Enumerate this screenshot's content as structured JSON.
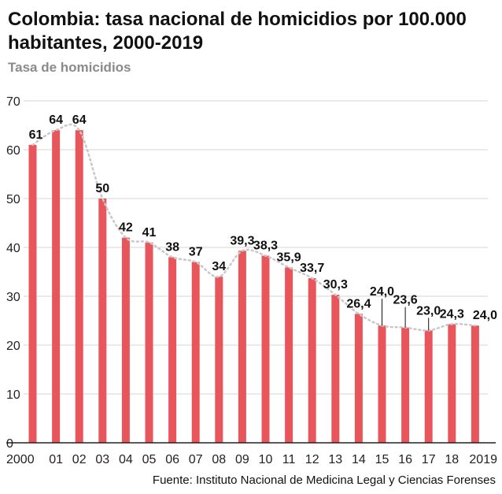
{
  "title": "Colombia: tasa nacional de homicidios por 100.000 habitantes, 2000-2019",
  "subtitle": "Tasa de homicidios",
  "source": "Fuente: Instituto Nacional de Medicina Legal y Ciencias Forenses",
  "colors": {
    "bar": "#e8565c",
    "trend": "#c8c8c8",
    "grid": "#d4d4d4",
    "axis": "#222222"
  },
  "chart_data": {
    "type": "bar",
    "title": "Colombia: tasa nacional de homicidios por 100.000 habitantes, 2000-2019",
    "ylabel": "Tasa de homicidios",
    "ylim": [
      0,
      70
    ],
    "yticks": [
      0,
      10,
      20,
      30,
      40,
      50,
      60,
      70
    ],
    "grid": true,
    "categories": [
      "2000",
      "01",
      "02",
      "03",
      "04",
      "05",
      "06",
      "07",
      "08",
      "09",
      "10",
      "11",
      "12",
      "13",
      "14",
      "15",
      "16",
      "17",
      "18",
      "2019"
    ],
    "values": [
      61,
      64,
      64,
      50,
      42,
      41,
      38,
      37,
      34,
      39.3,
      38.3,
      35.9,
      33.7,
      30.3,
      26.4,
      24.0,
      23.6,
      23.0,
      24.3,
      24.0
    ],
    "labels": [
      "61",
      "64",
      "64",
      "50",
      "42",
      "41",
      "38",
      "37",
      "34",
      "39,3",
      "38,3",
      "35,9",
      "33,7",
      "30,3",
      "26,4",
      "24,0",
      "23,6",
      "23,0",
      "24,3",
      "24,0"
    ],
    "trend_line": "dotted"
  }
}
